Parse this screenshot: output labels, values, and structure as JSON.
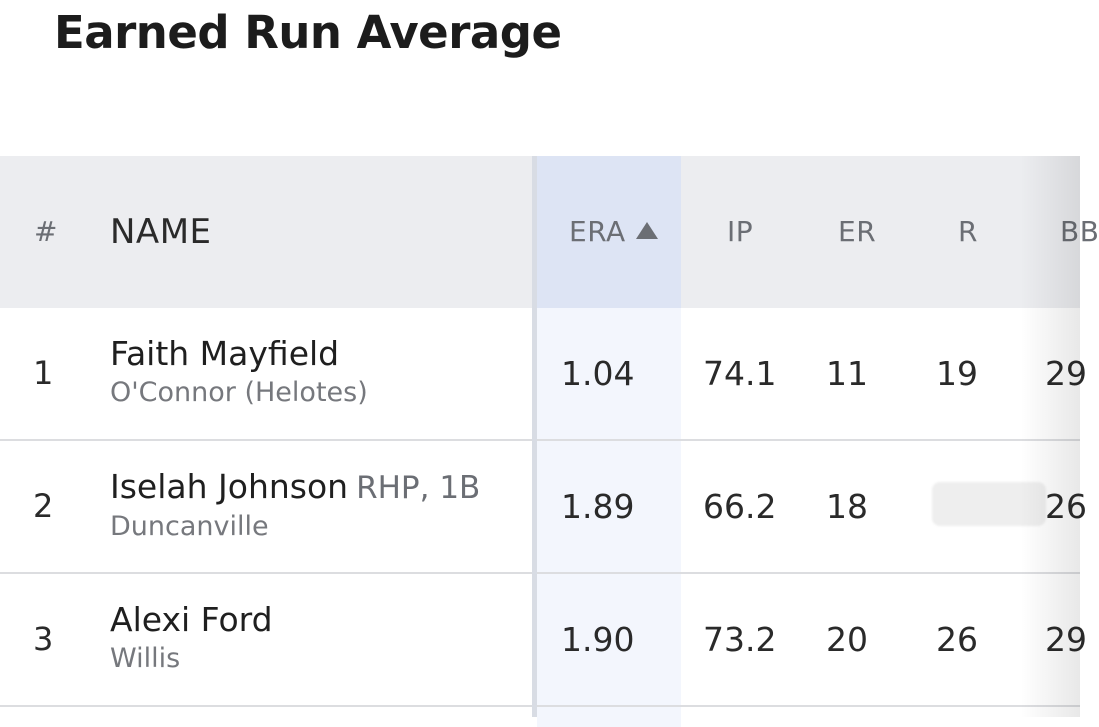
{
  "page": {
    "title": "Earned Run Average"
  },
  "table": {
    "columns": {
      "rank": "#",
      "name": "NAME",
      "era": "ERA",
      "ip": "IP",
      "er": "ER",
      "r": "R",
      "bb": "BB"
    },
    "sort": {
      "column": "ERA",
      "direction": "ascending",
      "icon": "sort-ascending-icon"
    },
    "rows": [
      {
        "rank": "1",
        "name": "Faith Mayfield",
        "position": "",
        "team": "O'Connor (Helotes)",
        "era": "1.04",
        "ip": "74.1",
        "er": "11",
        "r": "19",
        "bb": "29"
      },
      {
        "rank": "2",
        "name": "Iselah Johnson",
        "position": "RHP, 1B",
        "team": "Duncanville",
        "era": "1.89",
        "ip": "66.2",
        "er": "18",
        "r": "",
        "bb": "26"
      },
      {
        "rank": "3",
        "name": "Alexi Ford",
        "position": "",
        "team": "Willis",
        "era": "1.90",
        "ip": "73.2",
        "er": "20",
        "r": "26",
        "bb": "29"
      }
    ]
  },
  "colors": {
    "header_bg": "#ecedf0",
    "sorted_header_bg": "#dde4f4",
    "sorted_column_bg": "#f3f6fd",
    "divider": "#d8dce4"
  }
}
